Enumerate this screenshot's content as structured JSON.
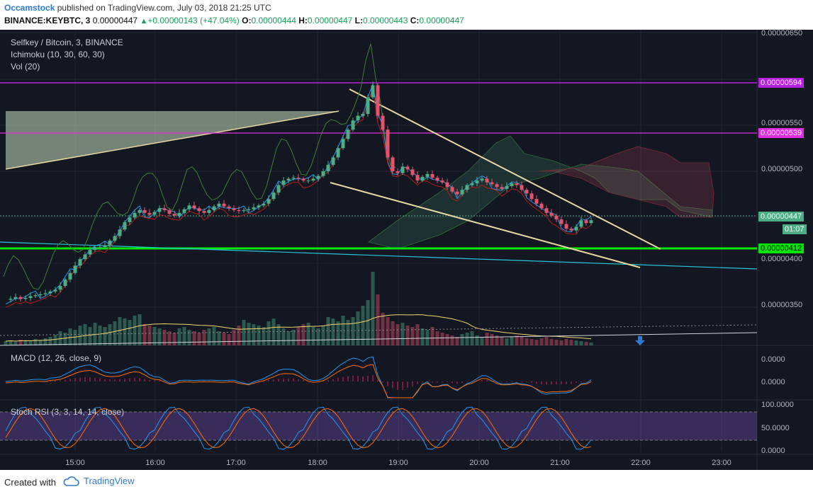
{
  "header": {
    "author": "Occamstock",
    "published": "published on TradingView.com, July 03, 2018 21:25 UTC",
    "symbol": "BINANCE:KEYBTC, 3",
    "last": "0.00000447",
    "change": "+0.00000143 (+47.04%)",
    "o_label": "O:",
    "o_val": "0.00000444",
    "h_label": "H:",
    "h_val": "0.00000447",
    "l_label": "L:",
    "l_val": "0.00000443",
    "c_label": "C:",
    "c_val": "0.00000447"
  },
  "overlays": {
    "title": "Selfkey / Bitcoin, 3, BINANCE",
    "ichimoku": "Ichimoku (10, 30, 60, 30)",
    "vol": "Vol (20)",
    "macd": "MACD (12, 26, close, 9)",
    "stoch": "Stoch RSI (3, 3, 14, 14, close)"
  },
  "price_labels": {
    "purple": "0.00000594",
    "magenta": "0.00000539",
    "current": "0.00000447",
    "countdown": "01:07",
    "green": "0.00000412"
  },
  "footer": {
    "created": "Created with",
    "brand": "TradingView"
  },
  "colors": {
    "up": "#4cae84",
    "down": "#e5536a",
    "bg": "#131722",
    "purple": "#b620e0",
    "magenta": "#e22ce2",
    "support": "#00e600"
  },
  "chart_data": {
    "type": "candlestick",
    "title": "Selfkey / Bitcoin, 3, BINANCE",
    "x_ticks": [
      "15:00",
      "16:00",
      "17:00",
      "18:00",
      "19:00",
      "20:00",
      "21:00",
      "22:00",
      "23:00"
    ],
    "y_ticks": [
      "0.00000650",
      "0.00000550",
      "0.00000500",
      "0.00000400",
      "0.00000350"
    ],
    "ylim": [
      3.2e-06,
      6.5e-06
    ],
    "horizontal_levels": [
      5.94e-06,
      5.39e-06,
      4.47e-06,
      4.12e-06
    ],
    "close_series": [
      361,
      362,
      364,
      362,
      363,
      365,
      366,
      367,
      368,
      370,
      372,
      376,
      383,
      390,
      398,
      405,
      410,
      415,
      418,
      418,
      420,
      425,
      430,
      437,
      445,
      450,
      455,
      458,
      455,
      453,
      456,
      460,
      458,
      454,
      452,
      455,
      459,
      463,
      460,
      457,
      455,
      458,
      462,
      465,
      462,
      460,
      458,
      457,
      458,
      459,
      461,
      463,
      465,
      470,
      477,
      485,
      490,
      492,
      493,
      492,
      490,
      490,
      492,
      495,
      500,
      507,
      515,
      525,
      535,
      545,
      555,
      560,
      562,
      580,
      593,
      560,
      545,
      515,
      500,
      498,
      505,
      502,
      496,
      490,
      494,
      497,
      493,
      490,
      488,
      483,
      478,
      475,
      480,
      485,
      487,
      490,
      492,
      488,
      486,
      483,
      481,
      484,
      487,
      485,
      480,
      476,
      470,
      465,
      460,
      455,
      452,
      448,
      443,
      438,
      436,
      440,
      447,
      444,
      447
    ],
    "volume_series": [
      6,
      7,
      5,
      8,
      7,
      6,
      9,
      8,
      10,
      12,
      15,
      20,
      18,
      24,
      22,
      28,
      30,
      26,
      32,
      28,
      26,
      30,
      34,
      40,
      38,
      36,
      42,
      44,
      30,
      28,
      26,
      24,
      22,
      20,
      18,
      24,
      26,
      22,
      20,
      18,
      22,
      24,
      26,
      20,
      18,
      16,
      22,
      28,
      36,
      32,
      30,
      28,
      26,
      34,
      38,
      30,
      24,
      20,
      22,
      26,
      30,
      32,
      26,
      24,
      28,
      40,
      38,
      34,
      42,
      36,
      40,
      48,
      56,
      64,
      104,
      72,
      46,
      40,
      34,
      30,
      32,
      28,
      26,
      30,
      24,
      22,
      26,
      20,
      18,
      16,
      14,
      12,
      16,
      18,
      20,
      14,
      12,
      18,
      16,
      14,
      12,
      10,
      12,
      14,
      12,
      10,
      9,
      8,
      10,
      12,
      9,
      8,
      7,
      9,
      8,
      7,
      6,
      5,
      4
    ],
    "macd_y_ticks": [
      "0.0000",
      "0.0000"
    ],
    "stoch_y_ticks": [
      "100.0000",
      "50.0000",
      "0.0000"
    ],
    "stoch_range": [
      0,
      100
    ]
  }
}
